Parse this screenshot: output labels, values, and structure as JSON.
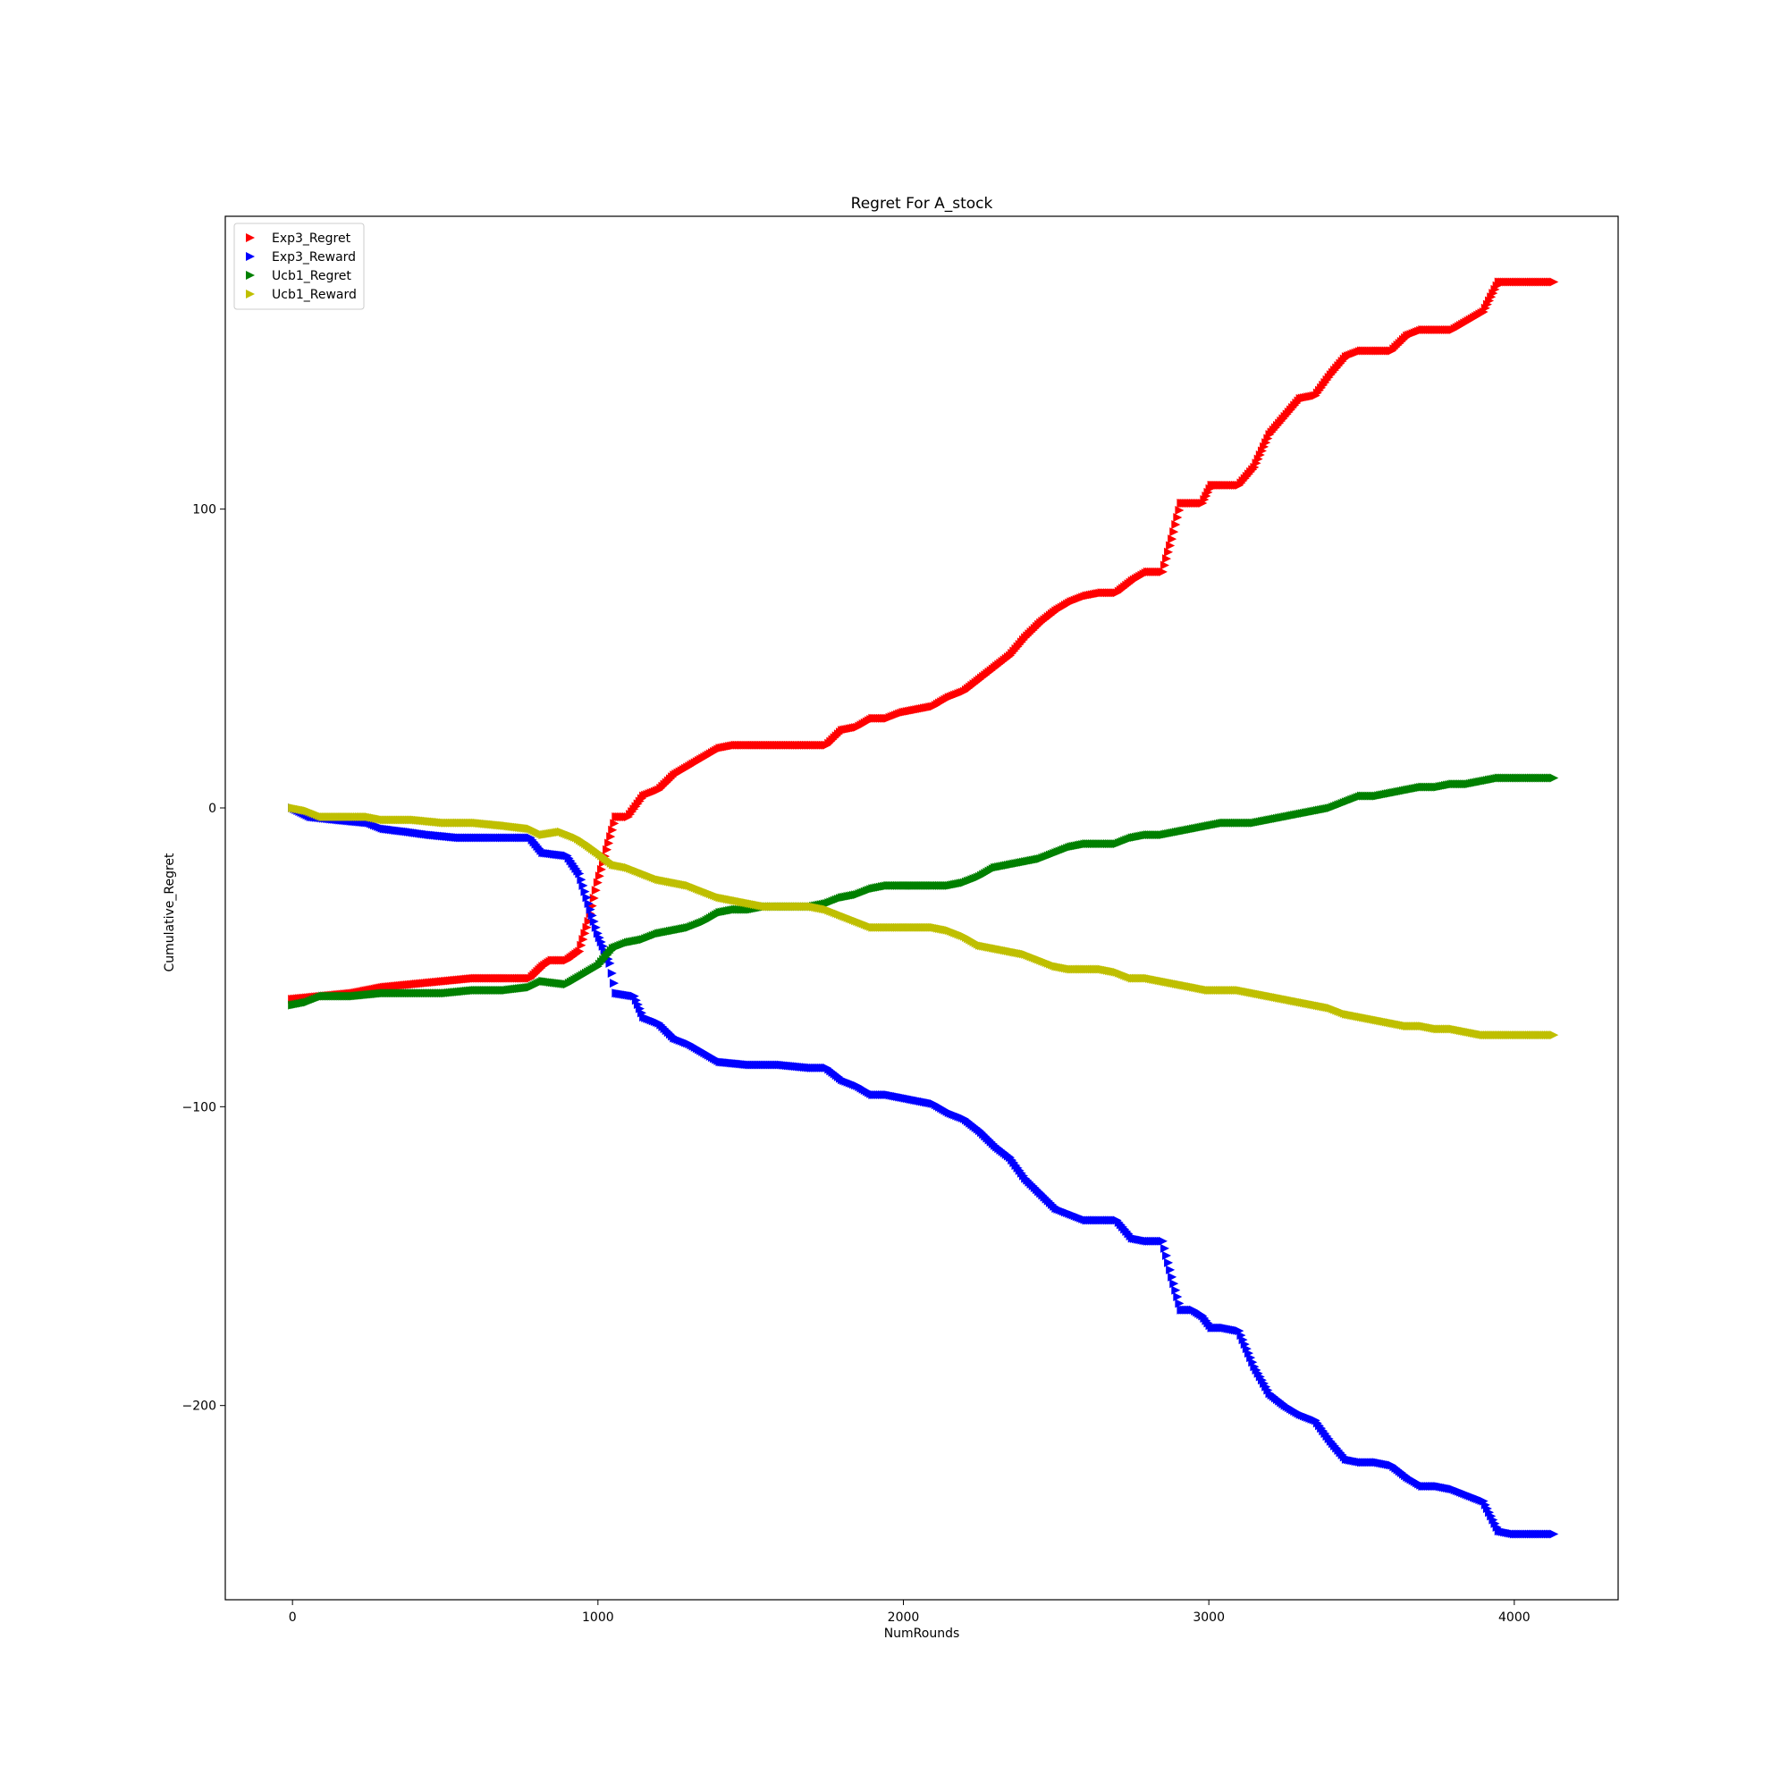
{
  "chart_data": {
    "type": "scatter",
    "title": "Regret For A_stock",
    "xlabel": "NumRounds",
    "ylabel": "Cumulative_Regret",
    "xlim": [
      -220,
      4340
    ],
    "ylim": [
      -265,
      198
    ],
    "xticks": [
      0,
      1000,
      2000,
      3000,
      4000
    ],
    "xtick_labels": [
      "0",
      "1000",
      "2000",
      "3000",
      "4000"
    ],
    "yticks": [
      -200,
      -100,
      0,
      100
    ],
    "ytick_labels": [
      "−200",
      "−100",
      "0",
      "100"
    ],
    "grid": false,
    "legend_position": "top-left",
    "marker": "triangle-right",
    "series": [
      {
        "name": "Exp3_Regret",
        "color": "#ff0000",
        "points": [
          [
            0,
            -64
          ],
          [
            100,
            -63
          ],
          [
            200,
            -62
          ],
          [
            300,
            -60
          ],
          [
            400,
            -59
          ],
          [
            500,
            -58
          ],
          [
            600,
            -57
          ],
          [
            700,
            -57
          ],
          [
            780,
            -57
          ],
          [
            820,
            -53
          ],
          [
            850,
            -51
          ],
          [
            900,
            -51
          ],
          [
            940,
            -48
          ],
          [
            970,
            -38
          ],
          [
            1000,
            -25
          ],
          [
            1030,
            -14
          ],
          [
            1060,
            -3
          ],
          [
            1100,
            -3
          ],
          [
            1150,
            4
          ],
          [
            1200,
            6
          ],
          [
            1250,
            11
          ],
          [
            1300,
            14
          ],
          [
            1350,
            17
          ],
          [
            1400,
            20
          ],
          [
            1450,
            21
          ],
          [
            1500,
            21
          ],
          [
            1600,
            21
          ],
          [
            1700,
            21
          ],
          [
            1750,
            21
          ],
          [
            1800,
            26
          ],
          [
            1850,
            27
          ],
          [
            1900,
            30
          ],
          [
            1950,
            30
          ],
          [
            2000,
            32
          ],
          [
            2050,
            33
          ],
          [
            2100,
            34
          ],
          [
            2150,
            37
          ],
          [
            2200,
            39
          ],
          [
            2250,
            43
          ],
          [
            2300,
            47
          ],
          [
            2350,
            51
          ],
          [
            2400,
            57
          ],
          [
            2450,
            62
          ],
          [
            2500,
            66
          ],
          [
            2550,
            69
          ],
          [
            2600,
            71
          ],
          [
            2650,
            72
          ],
          [
            2700,
            72
          ],
          [
            2750,
            76
          ],
          [
            2800,
            79
          ],
          [
            2850,
            79
          ],
          [
            2880,
            90
          ],
          [
            2910,
            102
          ],
          [
            2950,
            102
          ],
          [
            2980,
            102
          ],
          [
            3010,
            108
          ],
          [
            3050,
            108
          ],
          [
            3100,
            108
          ],
          [
            3150,
            114
          ],
          [
            3200,
            125
          ],
          [
            3250,
            131
          ],
          [
            3300,
            137
          ],
          [
            3350,
            138
          ],
          [
            3400,
            145
          ],
          [
            3450,
            151
          ],
          [
            3500,
            153
          ],
          [
            3550,
            153
          ],
          [
            3600,
            153
          ],
          [
            3650,
            158
          ],
          [
            3700,
            160
          ],
          [
            3750,
            160
          ],
          [
            3800,
            160
          ],
          [
            3850,
            163
          ],
          [
            3900,
            166
          ],
          [
            3950,
            176
          ],
          [
            4000,
            176
          ],
          [
            4050,
            176
          ],
          [
            4130,
            176
          ]
        ]
      },
      {
        "name": "Exp3_Reward",
        "color": "#0000ff",
        "points": [
          [
            0,
            0
          ],
          [
            60,
            -3
          ],
          [
            150,
            -4
          ],
          [
            250,
            -5
          ],
          [
            300,
            -7
          ],
          [
            380,
            -8
          ],
          [
            450,
            -9
          ],
          [
            550,
            -10
          ],
          [
            650,
            -10
          ],
          [
            700,
            -10
          ],
          [
            780,
            -10
          ],
          [
            820,
            -15
          ],
          [
            900,
            -16
          ],
          [
            940,
            -22
          ],
          [
            970,
            -32
          ],
          [
            1000,
            -42
          ],
          [
            1040,
            -52
          ],
          [
            1060,
            -62
          ],
          [
            1120,
            -63
          ],
          [
            1150,
            -70
          ],
          [
            1200,
            -72
          ],
          [
            1250,
            -77
          ],
          [
            1300,
            -79
          ],
          [
            1350,
            -82
          ],
          [
            1400,
            -85
          ],
          [
            1500,
            -86
          ],
          [
            1600,
            -86
          ],
          [
            1700,
            -87
          ],
          [
            1750,
            -87
          ],
          [
            1800,
            -91
          ],
          [
            1850,
            -93
          ],
          [
            1900,
            -96
          ],
          [
            1950,
            -96
          ],
          [
            2000,
            -97
          ],
          [
            2050,
            -98
          ],
          [
            2100,
            -99
          ],
          [
            2150,
            -102
          ],
          [
            2200,
            -104
          ],
          [
            2250,
            -108
          ],
          [
            2300,
            -113
          ],
          [
            2350,
            -117
          ],
          [
            2400,
            -124
          ],
          [
            2450,
            -129
          ],
          [
            2500,
            -134
          ],
          [
            2550,
            -136
          ],
          [
            2600,
            -138
          ],
          [
            2650,
            -138
          ],
          [
            2700,
            -138
          ],
          [
            2750,
            -144
          ],
          [
            2800,
            -145
          ],
          [
            2850,
            -145
          ],
          [
            2880,
            -157
          ],
          [
            2910,
            -168
          ],
          [
            2950,
            -168
          ],
          [
            2980,
            -170
          ],
          [
            3010,
            -174
          ],
          [
            3050,
            -174
          ],
          [
            3100,
            -175
          ],
          [
            3150,
            -187
          ],
          [
            3200,
            -196
          ],
          [
            3250,
            -200
          ],
          [
            3300,
            -203
          ],
          [
            3350,
            -205
          ],
          [
            3400,
            -212
          ],
          [
            3450,
            -218
          ],
          [
            3500,
            -219
          ],
          [
            3550,
            -219
          ],
          [
            3600,
            -220
          ],
          [
            3650,
            -224
          ],
          [
            3700,
            -227
          ],
          [
            3750,
            -227
          ],
          [
            3800,
            -228
          ],
          [
            3850,
            -230
          ],
          [
            3900,
            -232
          ],
          [
            3950,
            -242
          ],
          [
            4000,
            -243
          ],
          [
            4050,
            -243
          ],
          [
            4130,
            -243
          ]
        ]
      },
      {
        "name": "Ucb1_Regret",
        "color": "#008000",
        "points": [
          [
            0,
            -66
          ],
          [
            50,
            -65
          ],
          [
            100,
            -63
          ],
          [
            200,
            -63
          ],
          [
            300,
            -62
          ],
          [
            400,
            -62
          ],
          [
            500,
            -62
          ],
          [
            600,
            -61
          ],
          [
            700,
            -61
          ],
          [
            780,
            -60
          ],
          [
            820,
            -58
          ],
          [
            900,
            -59
          ],
          [
            950,
            -56
          ],
          [
            1000,
            -53
          ],
          [
            1050,
            -47
          ],
          [
            1100,
            -45
          ],
          [
            1150,
            -44
          ],
          [
            1200,
            -42
          ],
          [
            1250,
            -41
          ],
          [
            1300,
            -40
          ],
          [
            1350,
            -38
          ],
          [
            1400,
            -35
          ],
          [
            1450,
            -34
          ],
          [
            1500,
            -34
          ],
          [
            1550,
            -33
          ],
          [
            1600,
            -33
          ],
          [
            1700,
            -33
          ],
          [
            1750,
            -32
          ],
          [
            1800,
            -30
          ],
          [
            1850,
            -29
          ],
          [
            1900,
            -27
          ],
          [
            1950,
            -26
          ],
          [
            2000,
            -26
          ],
          [
            2100,
            -26
          ],
          [
            2150,
            -26
          ],
          [
            2200,
            -25
          ],
          [
            2250,
            -23
          ],
          [
            2300,
            -20
          ],
          [
            2350,
            -19
          ],
          [
            2400,
            -18
          ],
          [
            2450,
            -17
          ],
          [
            2500,
            -15
          ],
          [
            2550,
            -13
          ],
          [
            2600,
            -12
          ],
          [
            2650,
            -12
          ],
          [
            2700,
            -12
          ],
          [
            2750,
            -10
          ],
          [
            2800,
            -9
          ],
          [
            2850,
            -9
          ],
          [
            2900,
            -8
          ],
          [
            2950,
            -7
          ],
          [
            3000,
            -6
          ],
          [
            3050,
            -5
          ],
          [
            3100,
            -5
          ],
          [
            3150,
            -5
          ],
          [
            3200,
            -4
          ],
          [
            3250,
            -3
          ],
          [
            3300,
            -2
          ],
          [
            3350,
            -1
          ],
          [
            3400,
            0
          ],
          [
            3450,
            2
          ],
          [
            3500,
            4
          ],
          [
            3550,
            4
          ],
          [
            3600,
            5
          ],
          [
            3650,
            6
          ],
          [
            3700,
            7
          ],
          [
            3750,
            7
          ],
          [
            3800,
            8
          ],
          [
            3850,
            8
          ],
          [
            3900,
            9
          ],
          [
            3950,
            10
          ],
          [
            4000,
            10
          ],
          [
            4050,
            10
          ],
          [
            4130,
            10
          ]
        ]
      },
      {
        "name": "Ucb1_Reward",
        "color": "#bfbf00",
        "points": [
          [
            0,
            0
          ],
          [
            50,
            -1
          ],
          [
            100,
            -3
          ],
          [
            200,
            -3
          ],
          [
            250,
            -3
          ],
          [
            300,
            -4
          ],
          [
            400,
            -4
          ],
          [
            500,
            -5
          ],
          [
            600,
            -5
          ],
          [
            700,
            -6
          ],
          [
            780,
            -7
          ],
          [
            820,
            -9
          ],
          [
            880,
            -8
          ],
          [
            930,
            -10
          ],
          [
            960,
            -12
          ],
          [
            1000,
            -15
          ],
          [
            1050,
            -19
          ],
          [
            1100,
            -20
          ],
          [
            1150,
            -22
          ],
          [
            1200,
            -24
          ],
          [
            1250,
            -25
          ],
          [
            1300,
            -26
          ],
          [
            1350,
            -28
          ],
          [
            1400,
            -30
          ],
          [
            1450,
            -31
          ],
          [
            1500,
            -32
          ],
          [
            1550,
            -33
          ],
          [
            1600,
            -33
          ],
          [
            1700,
            -33
          ],
          [
            1750,
            -34
          ],
          [
            1800,
            -36
          ],
          [
            1850,
            -38
          ],
          [
            1900,
            -40
          ],
          [
            1950,
            -40
          ],
          [
            2000,
            -40
          ],
          [
            2100,
            -40
          ],
          [
            2150,
            -41
          ],
          [
            2200,
            -43
          ],
          [
            2250,
            -46
          ],
          [
            2300,
            -47
          ],
          [
            2350,
            -48
          ],
          [
            2400,
            -49
          ],
          [
            2450,
            -51
          ],
          [
            2500,
            -53
          ],
          [
            2550,
            -54
          ],
          [
            2600,
            -54
          ],
          [
            2650,
            -54
          ],
          [
            2700,
            -55
          ],
          [
            2750,
            -57
          ],
          [
            2800,
            -57
          ],
          [
            2850,
            -58
          ],
          [
            2900,
            -59
          ],
          [
            2950,
            -60
          ],
          [
            3000,
            -61
          ],
          [
            3050,
            -61
          ],
          [
            3100,
            -61
          ],
          [
            3150,
            -62
          ],
          [
            3200,
            -63
          ],
          [
            3250,
            -64
          ],
          [
            3300,
            -65
          ],
          [
            3350,
            -66
          ],
          [
            3400,
            -67
          ],
          [
            3450,
            -69
          ],
          [
            3500,
            -70
          ],
          [
            3550,
            -71
          ],
          [
            3600,
            -72
          ],
          [
            3650,
            -73
          ],
          [
            3700,
            -73
          ],
          [
            3750,
            -74
          ],
          [
            3800,
            -74
          ],
          [
            3850,
            -75
          ],
          [
            3900,
            -76
          ],
          [
            3950,
            -76
          ],
          [
            4000,
            -76
          ],
          [
            4050,
            -76
          ],
          [
            4130,
            -76
          ]
        ]
      }
    ]
  }
}
